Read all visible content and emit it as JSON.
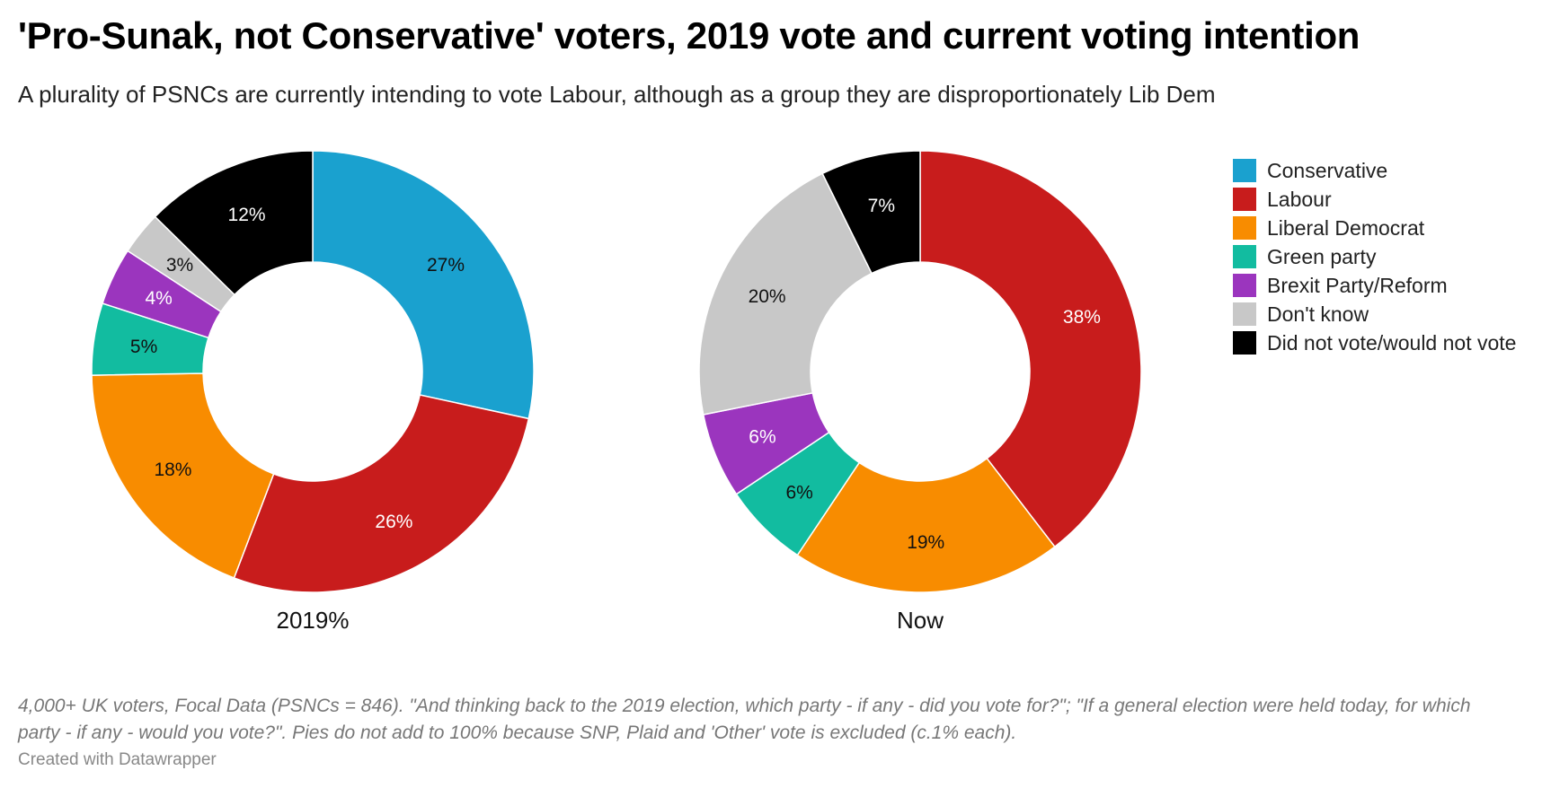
{
  "title": "'Pro-Sunak, not Conservative' voters, 2019 vote and current voting intention",
  "subtitle": "A plurality of PSNCs are currently intending to vote Labour, although as a group they are disproportionately Lib Dem",
  "footnote": "4,000+ UK voters, Focal Data (PSNCs = 846). \"And thinking back to the 2019 election, which party - if any - did you vote for?\"; \"If a general election were held today, for which party - if any - would you vote?\". Pies do not add to 100% because SNP, Plaid and 'Other' vote is excluded (c.1% each).",
  "credit": "Created with Datawrapper",
  "colors": {
    "Conservative": "#1aa1cf",
    "Labour": "#c81c1c",
    "Liberal Democrat": "#f88c00",
    "Green party": "#12bca0",
    "Brexit Party/Reform": "#9b35be",
    "Don't know": "#c8c8c8",
    "Did not vote/would not vote": "#000000"
  },
  "legend": [
    {
      "label": "Conservative",
      "color": "#1aa1cf"
    },
    {
      "label": "Labour",
      "color": "#c81c1c"
    },
    {
      "label": "Liberal Democrat",
      "color": "#f88c00"
    },
    {
      "label": "Green party",
      "color": "#12bca0"
    },
    {
      "label": "Brexit Party/Reform",
      "color": "#9b35be"
    },
    {
      "label": "Don't know",
      "color": "#c8c8c8"
    },
    {
      "label": "Did not vote/would not vote",
      "color": "#000000"
    }
  ],
  "chart_data": [
    {
      "type": "pie",
      "donut": true,
      "title": "2019%",
      "categories": [
        "Conservative",
        "Labour",
        "Liberal Democrat",
        "Green party",
        "Brexit Party/Reform",
        "Don't know",
        "Did not vote/would not vote"
      ],
      "values": [
        27,
        26,
        18,
        5,
        4,
        3,
        12
      ],
      "labels": [
        "27%",
        "26%",
        "18%",
        "5%",
        "4%",
        "3%",
        "12%"
      ]
    },
    {
      "type": "pie",
      "donut": true,
      "title": "Now",
      "categories": [
        "Labour",
        "Liberal Democrat",
        "Green party",
        "Brexit Party/Reform",
        "Don't know",
        "Did not vote/would not vote"
      ],
      "values": [
        38,
        19,
        6,
        6,
        20,
        7
      ],
      "labels": [
        "38%",
        "19%",
        "6%",
        "6%",
        "20%",
        "7%"
      ]
    }
  ]
}
